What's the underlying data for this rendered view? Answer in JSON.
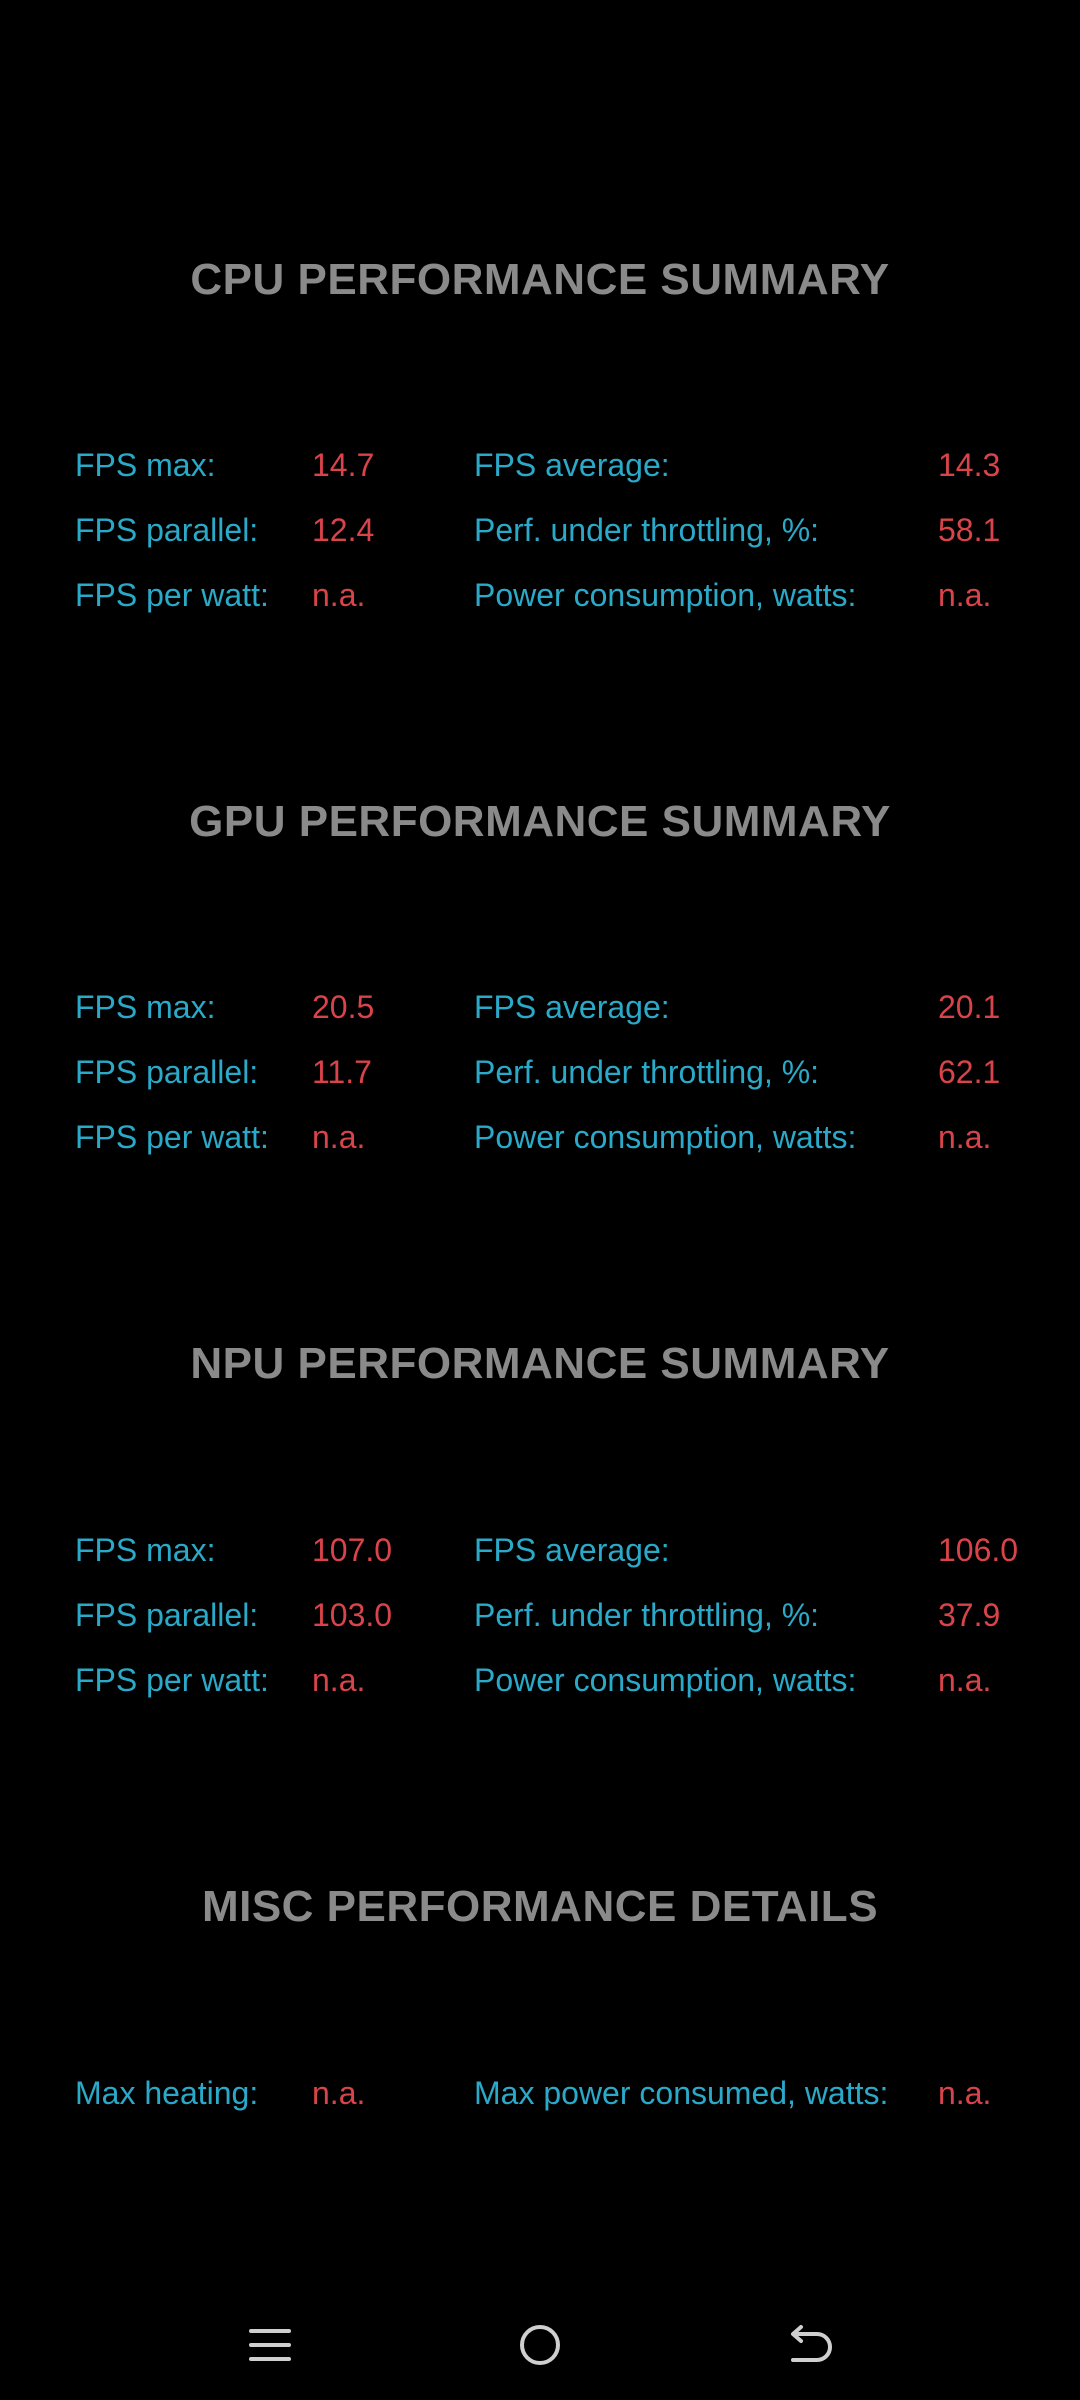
{
  "sections": [
    {
      "title": "CPU PERFORMANCE SUMMARY",
      "rows": [
        {
          "label1": "FPS max:",
          "value1": "14.7",
          "label2": "FPS average:",
          "value2": "14.3"
        },
        {
          "label1": "FPS parallel:",
          "value1": "12.4",
          "label2": "Perf. under throttling, %:",
          "value2": "58.1"
        },
        {
          "label1": "FPS per watt:",
          "value1": "n.a.",
          "label2": "Power consumption, watts:",
          "value2": "n.a."
        }
      ]
    },
    {
      "title": "GPU PERFORMANCE SUMMARY",
      "rows": [
        {
          "label1": "FPS max:",
          "value1": "20.5",
          "label2": "FPS average:",
          "value2": "20.1"
        },
        {
          "label1": "FPS parallel:",
          "value1": "11.7",
          "label2": "Perf. under throttling, %:",
          "value2": "62.1"
        },
        {
          "label1": "FPS per watt:",
          "value1": "n.a.",
          "label2": "Power consumption, watts:",
          "value2": "n.a."
        }
      ]
    },
    {
      "title": "NPU PERFORMANCE SUMMARY",
      "rows": [
        {
          "label1": "FPS max:",
          "value1": "107.0",
          "label2": "FPS average:",
          "value2": "106.0"
        },
        {
          "label1": "FPS parallel:",
          "value1": "103.0",
          "label2": "Perf. under throttling, %:",
          "value2": "37.9"
        },
        {
          "label1": "FPS per watt:",
          "value1": "n.a.",
          "label2": "Power consumption, watts:",
          "value2": "n.a."
        }
      ]
    },
    {
      "title": "MISC PERFORMANCE DETAILS",
      "rows": [
        {
          "label1": "Max heating:",
          "value1": "n.a.",
          "label2": "Max power consumed, watts:",
          "value2": "n.a."
        }
      ]
    }
  ],
  "navbar": {
    "icons": [
      "menu-icon",
      "home-icon",
      "back-icon"
    ]
  },
  "colors": {
    "background": "#000000",
    "title": "#8a8a8a",
    "label": "#2aa9c8",
    "value": "#d9434a"
  }
}
